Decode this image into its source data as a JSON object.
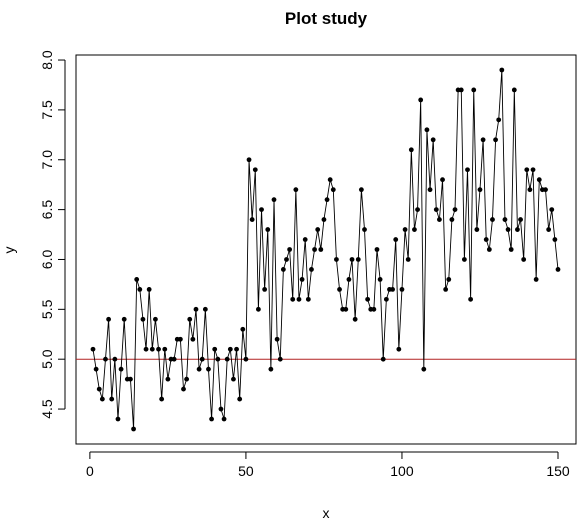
{
  "chart_data": {
    "type": "line",
    "title": "Plot study",
    "xlabel": "x",
    "ylabel": "y",
    "xlim": [
      1,
      150
    ],
    "ylim": [
      4.3,
      7.9
    ],
    "xticks": [
      0,
      50,
      100,
      150
    ],
    "yticks": [
      4.5,
      5.0,
      5.5,
      6.0,
      6.5,
      7.0,
      7.5,
      8.0
    ],
    "xtick_labels": [
      "0",
      "50",
      "100",
      "150"
    ],
    "ytick_labels": [
      "4.5",
      "5.0",
      "5.5",
      "6.0",
      "6.5",
      "7.0",
      "7.5",
      "8.0"
    ],
    "grid": false,
    "reference_line": {
      "y": 5.0,
      "color": "#b22222"
    },
    "series": [
      {
        "color": "#000000",
        "x": [
          1,
          2,
          3,
          4,
          5,
          6,
          7,
          8,
          9,
          10,
          11,
          12,
          13,
          14,
          15,
          16,
          17,
          18,
          19,
          20,
          21,
          22,
          23,
          24,
          25,
          26,
          27,
          28,
          29,
          30,
          31,
          32,
          33,
          34,
          35,
          36,
          37,
          38,
          39,
          40,
          41,
          42,
          43,
          44,
          45,
          46,
          47,
          48,
          49,
          50,
          51,
          52,
          53,
          54,
          55,
          56,
          57,
          58,
          59,
          60,
          61,
          62,
          63,
          64,
          65,
          66,
          67,
          68,
          69,
          70,
          71,
          72,
          73,
          74,
          75,
          76,
          77,
          78,
          79,
          80,
          81,
          82,
          83,
          84,
          85,
          86,
          87,
          88,
          89,
          90,
          91,
          92,
          93,
          94,
          95,
          96,
          97,
          98,
          99,
          100,
          101,
          102,
          103,
          104,
          105,
          106,
          107,
          108,
          109,
          110,
          111,
          112,
          113,
          114,
          115,
          116,
          117,
          118,
          119,
          120,
          121,
          122,
          123,
          124,
          125,
          126,
          127,
          128,
          129,
          130,
          131,
          132,
          133,
          134,
          135,
          136,
          137,
          138,
          139,
          140,
          141,
          142,
          143,
          144,
          145,
          146,
          147,
          148,
          149,
          150
        ],
        "y": [
          5.1,
          4.9,
          4.7,
          4.6,
          5.0,
          5.4,
          4.6,
          5.0,
          4.4,
          4.9,
          5.4,
          4.8,
          4.8,
          4.3,
          5.8,
          5.7,
          5.4,
          5.1,
          5.7,
          5.1,
          5.4,
          5.1,
          4.6,
          5.1,
          4.8,
          5.0,
          5.0,
          5.2,
          5.2,
          4.7,
          4.8,
          5.4,
          5.2,
          5.5,
          4.9,
          5.0,
          5.5,
          4.9,
          4.4,
          5.1,
          5.0,
          4.5,
          4.4,
          5.0,
          5.1,
          4.8,
          5.1,
          4.6,
          5.3,
          5.0,
          7.0,
          6.4,
          6.9,
          5.5,
          6.5,
          5.7,
          6.3,
          4.9,
          6.6,
          5.2,
          5.0,
          5.9,
          6.0,
          6.1,
          5.6,
          6.7,
          5.6,
          5.8,
          6.2,
          5.6,
          5.9,
          6.1,
          6.3,
          6.1,
          6.4,
          6.6,
          6.8,
          6.7,
          6.0,
          5.7,
          5.5,
          5.5,
          5.8,
          6.0,
          5.4,
          6.0,
          6.7,
          6.3,
          5.6,
          5.5,
          5.5,
          6.1,
          5.8,
          5.0,
          5.6,
          5.7,
          5.7,
          6.2,
          5.1,
          5.7,
          6.3,
          6.0,
          7.1,
          6.3,
          6.5,
          7.6,
          4.9,
          7.3,
          6.7,
          7.2,
          6.5,
          6.4,
          6.8,
          5.7,
          5.8,
          6.4,
          6.5,
          7.7,
          7.7,
          6.0,
          6.9,
          5.6,
          7.7,
          6.3,
          6.7,
          7.2,
          6.2,
          6.1,
          6.4,
          7.2,
          7.4,
          7.9,
          6.4,
          6.3,
          6.1,
          7.7,
          6.3,
          6.4,
          6.0,
          6.9,
          6.7,
          6.9,
          5.8,
          6.8,
          6.7,
          6.7,
          6.3,
          6.5,
          6.2,
          5.9
        ]
      }
    ]
  }
}
